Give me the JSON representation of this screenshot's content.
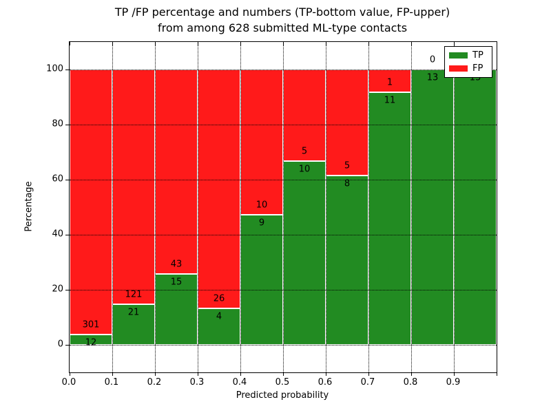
{
  "chart_data": {
    "type": "bar",
    "stacked": true,
    "title_line1": "TP /FP percentage and numbers (TP-bottom value, FP-upper)",
    "title_line2": "from among 628 submitted ML-type contacts",
    "xlabel": "Predicted probability",
    "ylabel": "Percentage",
    "total_contacts": 628,
    "categories": [
      "0.0-0.1",
      "0.1-0.2",
      "0.2-0.3",
      "0.3-0.4",
      "0.4-0.5",
      "0.5-0.6",
      "0.6-0.7",
      "0.7-0.8",
      "0.8-0.9",
      "0.9-1.0"
    ],
    "series": [
      {
        "name": "TP",
        "color": "#228B22",
        "values": [
          12,
          21,
          15,
          4,
          9,
          10,
          8,
          11,
          13,
          13
        ]
      },
      {
        "name": "FP",
        "color": "#ff1a1a",
        "values": [
          301,
          121,
          43,
          26,
          10,
          5,
          5,
          1,
          0,
          0
        ]
      }
    ],
    "tp_percentages": [
      3.8,
      14.8,
      25.9,
      13.3,
      47.4,
      66.7,
      61.5,
      91.7,
      100.0,
      100.0
    ],
    "x_ticks": [
      "0.0",
      "0.1",
      "0.2",
      "0.3",
      "0.4",
      "0.5",
      "0.6",
      "0.7",
      "0.8",
      "0.9"
    ],
    "y_ticks": [
      0,
      20,
      40,
      60,
      80,
      100
    ],
    "xlim": [
      0.0,
      1.0
    ],
    "ylim": [
      -10,
      110
    ],
    "grid": "dotted",
    "legend_position": "upper right"
  },
  "colors": {
    "tp": "#228B22",
    "fp": "#ff1a1a",
    "grid": "#000000",
    "background": "#ffffff"
  }
}
